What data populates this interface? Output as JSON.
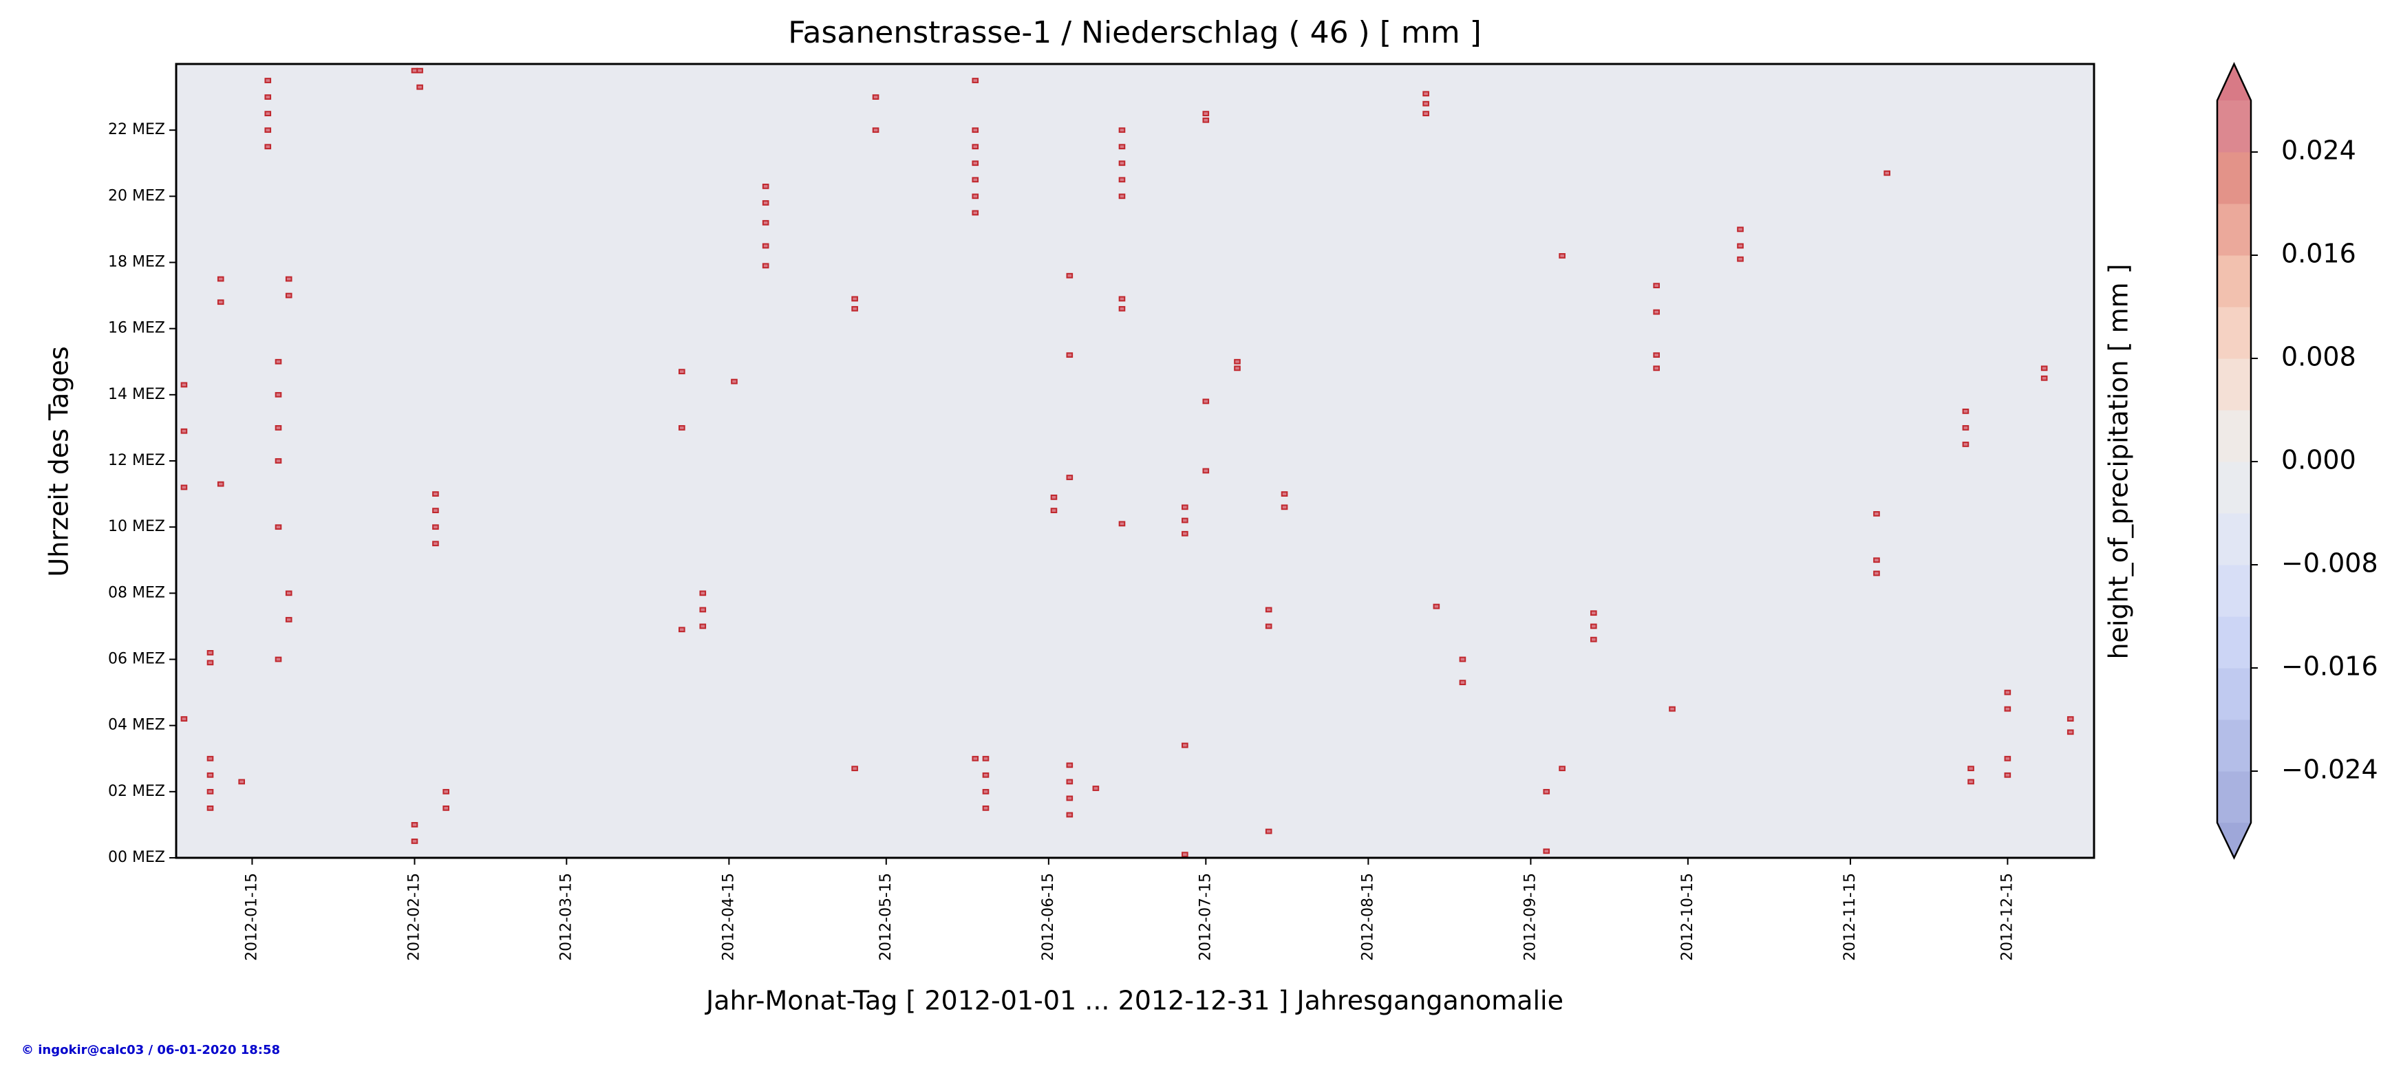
{
  "chart_data": {
    "type": "heatmap",
    "title": "Fasanenstrasse-1 / Niederschlag ( 46 ) [ mm ]",
    "x_label": "Jahr-Monat-Tag [ 2012-01-01 ... 2012-12-31 ] Jahresganganomalie",
    "y_label": "Uhrzeit des Tages",
    "footer": "© ingokir@calc03 / 06-01-2020 18:58",
    "xlim": [
      "2012-01-01",
      "2012-12-31"
    ],
    "xticks": [
      "2012-01-15",
      "2012-02-15",
      "2012-03-15",
      "2012-04-15",
      "2012-05-15",
      "2012-06-15",
      "2012-07-15",
      "2012-08-15",
      "2012-09-15",
      "2012-10-15",
      "2012-11-15",
      "2012-12-15"
    ],
    "ylim": [
      0,
      24
    ],
    "yticks": [
      {
        "value": 0,
        "label": "00 MEZ"
      },
      {
        "value": 2,
        "label": "02 MEZ"
      },
      {
        "value": 4,
        "label": "04 MEZ"
      },
      {
        "value": 6,
        "label": "06 MEZ"
      },
      {
        "value": 8,
        "label": "08 MEZ"
      },
      {
        "value": 10,
        "label": "10 MEZ"
      },
      {
        "value": 12,
        "label": "12 MEZ"
      },
      {
        "value": 14,
        "label": "14 MEZ"
      },
      {
        "value": 16,
        "label": "16 MEZ"
      },
      {
        "value": 18,
        "label": "18 MEZ"
      },
      {
        "value": 20,
        "label": "20 MEZ"
      },
      {
        "value": 22,
        "label": "22 MEZ"
      }
    ],
    "colorbar": {
      "label": "height_of_precipitation [ mm ]",
      "levels": [
        -0.028,
        -0.024,
        -0.02,
        -0.016,
        -0.012,
        -0.008,
        -0.004,
        0,
        0.004,
        0.008,
        0.012,
        0.016,
        0.02,
        0.024,
        0.028
      ],
      "colors": [
        "#a9b2e0",
        "#b4bee8",
        "#c0caf0",
        "#ccd5f5",
        "#d7def6",
        "#e1e6f4",
        "#e9ebef",
        "#efeae7",
        "#f4e0d6",
        "#f5d2c3",
        "#f2c1af",
        "#eba99b",
        "#e39389",
        "#dc8890"
      ],
      "under_color": "#9ea7d9",
      "over_color": "#d87a86",
      "ticks": [
        0.024,
        0.016,
        0.008,
        {
          "value": 0,
          "label": "0.000"
        },
        {
          "value": -0.008,
          "label": "−0.008"
        },
        {
          "value": -0.016,
          "label": "−0.016"
        },
        {
          "value": -0.024,
          "label": "−0.024"
        }
      ]
    },
    "mark_color": "#c0272d",
    "columns": [
      {
        "x": "2012-01-02",
        "y": [
          14.3,
          12.9,
          11.2,
          4.2
        ],
        "values": [
          0.1,
          0.1,
          0.1,
          0.1
        ]
      },
      {
        "x": "2012-01-07",
        "y": [
          1.5,
          2.0,
          2.5,
          3.0,
          5.9,
          6.2
        ],
        "values": [
          0.2,
          0.2,
          0.1,
          0.1,
          0.1,
          0.1
        ]
      },
      {
        "x": "2012-01-09",
        "y": [
          11.3,
          16.8,
          17.5
        ],
        "values": [
          0.1,
          0.1,
          0.1
        ]
      },
      {
        "x": "2012-01-13",
        "y": [
          2.3
        ],
        "values": [
          0.1
        ]
      },
      {
        "x": "2012-01-18",
        "y": [
          21.5,
          22.0,
          22.5,
          23.0,
          23.5
        ],
        "values": [
          0.2,
          0.2,
          0.1,
          0.1,
          0.1
        ]
      },
      {
        "x": "2012-01-20",
        "y": [
          12.0,
          13.0,
          14.0,
          15.0,
          10.0,
          6.0
        ],
        "values": [
          0.1,
          0.1,
          0.1,
          0.1,
          0.1,
          0.1
        ]
      },
      {
        "x": "2012-01-22",
        "y": [
          17.0,
          17.5,
          8.0,
          7.2
        ],
        "values": [
          0.1,
          0.1,
          0.1,
          0.1
        ]
      },
      {
        "x": "2012-02-15",
        "y": [
          0.5,
          1.0,
          23.8
        ],
        "values": [
          0.1,
          0.1,
          0.1
        ]
      },
      {
        "x": "2012-02-16",
        "y": [
          23.8,
          23.3
        ],
        "values": [
          0.1,
          0.1
        ]
      },
      {
        "x": "2012-02-19",
        "y": [
          9.5,
          10.0,
          10.5,
          11.0
        ],
        "values": [
          0.2,
          0.2,
          0.1,
          0.1
        ]
      },
      {
        "x": "2012-02-21",
        "y": [
          1.5,
          2.0
        ],
        "values": [
          0.1,
          0.1
        ]
      },
      {
        "x": "2012-04-06",
        "y": [
          6.9,
          14.7,
          13.0
        ],
        "values": [
          0.1,
          0.1,
          0.1
        ]
      },
      {
        "x": "2012-04-10",
        "y": [
          7.0,
          7.5,
          8.0
        ],
        "values": [
          0.1,
          0.1,
          0.1
        ]
      },
      {
        "x": "2012-04-16",
        "y": [
          14.4
        ],
        "values": [
          0.1
        ]
      },
      {
        "x": "2012-04-22",
        "y": [
          17.9,
          18.5,
          19.2,
          19.8,
          20.3
        ],
        "values": [
          0.2,
          0.1,
          0.2,
          0.1,
          0.1
        ]
      },
      {
        "x": "2012-05-09",
        "y": [
          2.7,
          16.6,
          16.9
        ],
        "values": [
          0.1,
          0.2,
          0.1
        ]
      },
      {
        "x": "2012-05-13",
        "y": [
          22.0,
          23.0
        ],
        "values": [
          0.1,
          0.1
        ]
      },
      {
        "x": "2012-06-01",
        "y": [
          19.5,
          20.0,
          20.5,
          21.0,
          21.5,
          22.0,
          23.5,
          3.0
        ],
        "values": [
          0.2,
          0.2,
          0.1,
          0.1,
          0.1,
          0.1,
          0.1,
          0.1
        ]
      },
      {
        "x": "2012-06-03",
        "y": [
          1.5,
          2.0,
          2.5,
          3.0
        ],
        "values": [
          0.2,
          0.2,
          0.1,
          0.1
        ]
      },
      {
        "x": "2012-06-16",
        "y": [
          10.5,
          10.9
        ],
        "values": [
          0.2,
          0.2
        ]
      },
      {
        "x": "2012-06-19",
        "y": [
          1.3,
          1.8,
          2.3,
          2.8,
          11.5,
          15.2,
          17.6
        ],
        "values": [
          0.3,
          0.3,
          0.2,
          0.2,
          0.1,
          0.1,
          0.1
        ]
      },
      {
        "x": "2012-06-24",
        "y": [
          2.1
        ],
        "values": [
          0.2
        ]
      },
      {
        "x": "2012-06-29",
        "y": [
          20.0,
          20.5,
          21.0,
          21.5,
          22.0,
          16.6,
          16.9,
          10.1
        ],
        "values": [
          0.2,
          0.2,
          0.2,
          0.1,
          0.1,
          0.2,
          0.1,
          0.1
        ]
      },
      {
        "x": "2012-07-11",
        "y": [
          9.8,
          10.2,
          10.6,
          3.4,
          0.1
        ],
        "values": [
          0.2,
          0.2,
          0.1,
          0.1,
          0.1
        ]
      },
      {
        "x": "2012-07-15",
        "y": [
          22.3,
          22.5,
          13.8,
          11.7
        ],
        "values": [
          0.2,
          0.2,
          0.1,
          0.1
        ]
      },
      {
        "x": "2012-07-21",
        "y": [
          14.8,
          15.0
        ],
        "values": [
          0.2,
          0.2
        ]
      },
      {
        "x": "2012-07-27",
        "y": [
          7.0,
          7.5,
          0.8
        ],
        "values": [
          0.2,
          0.2,
          0.1
        ]
      },
      {
        "x": "2012-07-30",
        "y": [
          10.6,
          11.0
        ],
        "values": [
          0.2,
          0.2
        ]
      },
      {
        "x": "2012-08-26",
        "y": [
          22.5,
          22.8,
          23.1
        ],
        "values": [
          0.2,
          0.2,
          0.1
        ]
      },
      {
        "x": "2012-08-28",
        "y": [
          7.6
        ],
        "values": [
          0.1
        ]
      },
      {
        "x": "2012-09-02",
        "y": [
          6.0,
          5.3
        ],
        "values": [
          0.1,
          0.1
        ]
      },
      {
        "x": "2012-09-18",
        "y": [
          2.0,
          0.2
        ],
        "values": [
          0.1,
          0.1
        ]
      },
      {
        "x": "2012-09-21",
        "y": [
          18.2,
          2.7
        ],
        "values": [
          0.1,
          0.1
        ]
      },
      {
        "x": "2012-09-27",
        "y": [
          6.6,
          7.0,
          7.4
        ],
        "values": [
          0.2,
          0.2,
          0.1
        ]
      },
      {
        "x": "2012-10-09",
        "y": [
          15.2,
          14.8,
          16.5,
          17.3
        ],
        "values": [
          0.1,
          0.1,
          0.1,
          0.1
        ]
      },
      {
        "x": "2012-10-12",
        "y": [
          4.5
        ],
        "values": [
          0.1
        ]
      },
      {
        "x": "2012-10-25",
        "y": [
          18.1,
          18.5,
          19.0
        ],
        "values": [
          0.2,
          0.1,
          0.1
        ]
      },
      {
        "x": "2012-11-20",
        "y": [
          8.6,
          9.0,
          10.4
        ],
        "values": [
          0.1,
          0.1,
          0.1
        ]
      },
      {
        "x": "2012-11-22",
        "y": [
          20.7
        ],
        "values": [
          0.1
        ]
      },
      {
        "x": "2012-12-07",
        "y": [
          13.0,
          13.5,
          12.5
        ],
        "values": [
          0.2,
          0.1,
          0.1
        ]
      },
      {
        "x": "2012-12-08",
        "y": [
          2.3,
          2.7
        ],
        "values": [
          0.1,
          0.1
        ]
      },
      {
        "x": "2012-12-15",
        "y": [
          2.5,
          3.0,
          4.5,
          5.0
        ],
        "values": [
          0.1,
          0.1,
          0.1,
          0.1
        ]
      },
      {
        "x": "2012-12-22",
        "y": [
          14.8,
          14.5
        ],
        "values": [
          0.1,
          0.1
        ]
      },
      {
        "x": "2012-12-27",
        "y": [
          3.8,
          4.2
        ],
        "values": [
          0.1,
          0.1
        ]
      }
    ]
  }
}
